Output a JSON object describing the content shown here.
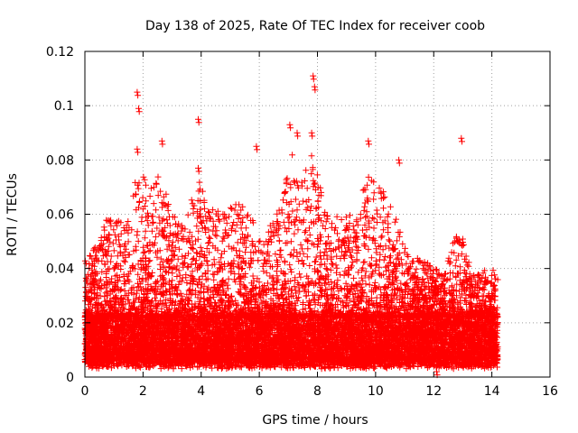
{
  "chart_data": {
    "type": "scatter",
    "title": "Day 138 of 2025, Rate Of TEC Index for receiver coob",
    "xlabel": "GPS time / hours",
    "ylabel": "ROTI / TECUs",
    "xlim": [
      0,
      16
    ],
    "ylim": [
      0,
      0.12
    ],
    "x_ticks": [
      0,
      2,
      4,
      6,
      8,
      10,
      12,
      14,
      16
    ],
    "x_tick_labels": [
      "0",
      "2",
      "4",
      "6",
      "8",
      "10",
      "12",
      "14",
      "16"
    ],
    "y_ticks": [
      0,
      0.02,
      0.04,
      0.06,
      0.08,
      0.1,
      0.12
    ],
    "y_tick_labels": [
      "0",
      "0.02",
      "0.04",
      "0.06",
      "0.08",
      "0.1",
      "0.12"
    ],
    "grid": true,
    "marker": "plus",
    "marker_color": "#ff0000",
    "series": [
      {
        "name": "ROTI",
        "x_range": [
          0,
          14.2
        ],
        "baseline_band": [
          0.005,
          0.022
        ],
        "notable_points": [
          {
            "x": 1.8,
            "y": 0.105
          },
          {
            "x": 1.85,
            "y": 0.099
          },
          {
            "x": 1.8,
            "y": 0.084
          },
          {
            "x": 2.65,
            "y": 0.087
          },
          {
            "x": 3.9,
            "y": 0.095
          },
          {
            "x": 3.9,
            "y": 0.077
          },
          {
            "x": 5.9,
            "y": 0.085
          },
          {
            "x": 7.05,
            "y": 0.093
          },
          {
            "x": 7.3,
            "y": 0.09
          },
          {
            "x": 7.85,
            "y": 0.111
          },
          {
            "x": 7.9,
            "y": 0.107
          },
          {
            "x": 7.8,
            "y": 0.09
          },
          {
            "x": 9.75,
            "y": 0.087
          },
          {
            "x": 10.8,
            "y": 0.08
          },
          {
            "x": 12.95,
            "y": 0.088
          },
          {
            "x": 12.1,
            "y": 0.002
          }
        ],
        "envelope": [
          {
            "x": 0.0,
            "y": 0.043
          },
          {
            "x": 0.5,
            "y": 0.05
          },
          {
            "x": 0.8,
            "y": 0.06
          },
          {
            "x": 1.2,
            "y": 0.058
          },
          {
            "x": 1.6,
            "y": 0.06
          },
          {
            "x": 1.8,
            "y": 0.08
          },
          {
            "x": 2.2,
            "y": 0.07
          },
          {
            "x": 2.6,
            "y": 0.075
          },
          {
            "x": 3.0,
            "y": 0.06
          },
          {
            "x": 3.5,
            "y": 0.058
          },
          {
            "x": 3.9,
            "y": 0.075
          },
          {
            "x": 4.3,
            "y": 0.062
          },
          {
            "x": 4.8,
            "y": 0.062
          },
          {
            "x": 5.3,
            "y": 0.065
          },
          {
            "x": 5.8,
            "y": 0.058
          },
          {
            "x": 6.3,
            "y": 0.055
          },
          {
            "x": 6.8,
            "y": 0.065
          },
          {
            "x": 7.1,
            "y": 0.085
          },
          {
            "x": 7.4,
            "y": 0.07
          },
          {
            "x": 7.8,
            "y": 0.085
          },
          {
            "x": 8.3,
            "y": 0.06
          },
          {
            "x": 8.8,
            "y": 0.06
          },
          {
            "x": 9.3,
            "y": 0.06
          },
          {
            "x": 9.7,
            "y": 0.075
          },
          {
            "x": 10.2,
            "y": 0.07
          },
          {
            "x": 10.7,
            "y": 0.06
          },
          {
            "x": 11.2,
            "y": 0.045
          },
          {
            "x": 11.8,
            "y": 0.042
          },
          {
            "x": 12.3,
            "y": 0.038
          },
          {
            "x": 12.9,
            "y": 0.057
          },
          {
            "x": 13.3,
            "y": 0.038
          },
          {
            "x": 13.8,
            "y": 0.04
          },
          {
            "x": 14.2,
            "y": 0.04
          }
        ]
      }
    ]
  }
}
